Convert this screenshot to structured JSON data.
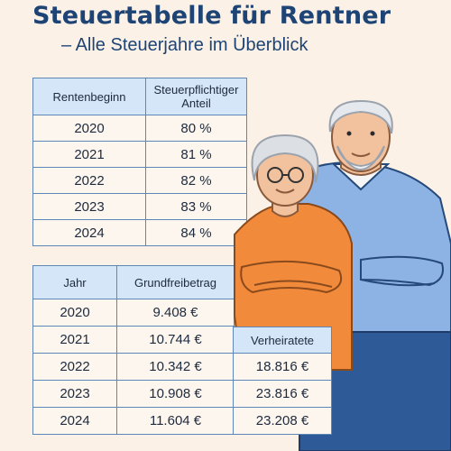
{
  "title": "Steuertabelle für Rentner",
  "subtitle": "– Alle Steuerjahre im Überblick",
  "table_rentenbeginn": {
    "headers": [
      "Rentenbeginn",
      "Steuerpflichtiger Anteil"
    ],
    "rows": [
      [
        "2020",
        "80 %"
      ],
      [
        "2021",
        "81 %"
      ],
      [
        "2022",
        "82 %"
      ],
      [
        "2023",
        "83 %"
      ],
      [
        "2024",
        "84 %"
      ]
    ]
  },
  "table_grundfreibetrag": {
    "headers": [
      "Jahr",
      "Grundfreibetrag"
    ],
    "rows": [
      [
        "2020",
        "9.408 €"
      ],
      [
        "2021",
        "10.744 €"
      ],
      [
        "2022",
        "10.342 €"
      ],
      [
        "2023",
        "10.908 €"
      ],
      [
        "2024",
        "11.604 €"
      ]
    ]
  },
  "table_verheiratete": {
    "header": "Verheiratete",
    "rows": [
      "18.816 €",
      "23.816 €",
      "23.208 €"
    ]
  },
  "colors": {
    "title": "#1d4475",
    "background": "#fbf1e6",
    "header_fill": "#d5e6f8",
    "border": "#5e87b8"
  }
}
